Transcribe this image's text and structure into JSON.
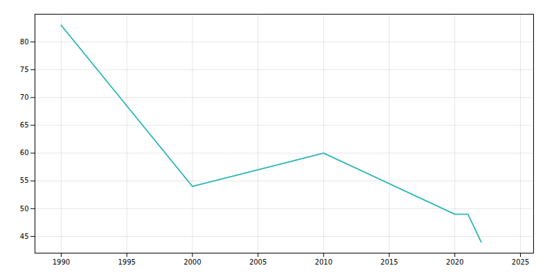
{
  "chart_data": {
    "type": "line",
    "x": [
      1990,
      2000,
      2010,
      2020,
      2021,
      2022
    ],
    "values": [
      83,
      54,
      60,
      49,
      49,
      44
    ],
    "color": "#2AB5B5",
    "xlim": [
      1988,
      2026
    ],
    "ylim": [
      42,
      85
    ],
    "xticks": [
      1990,
      1995,
      2000,
      2005,
      2010,
      2015,
      2020,
      2025
    ],
    "yticks": [
      45,
      50,
      55,
      60,
      65,
      70,
      75,
      80
    ],
    "grid": true
  }
}
